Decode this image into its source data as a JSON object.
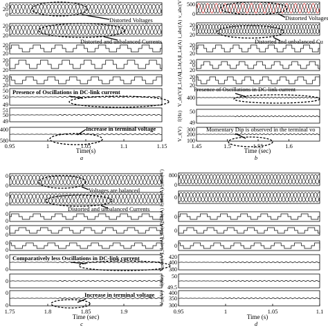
{
  "chart_data": [
    {
      "type": "line",
      "panel_label": "a",
      "x_range": [
        0.95,
        1.15
      ],
      "x_ticks": [
        "0.95",
        "1",
        "1.05",
        "1.1",
        "1.15"
      ],
      "x_title": "Time(s)",
      "rows": [
        {
          "kind": "three_phase",
          "ticks": [
            "0",
            "20",
            "0"
          ]
        },
        {
          "kind": "three_phase",
          "ticks": [
            "20",
            "0",
            "20"
          ]
        },
        {
          "kind": "square",
          "ticks": [
            "20",
            "0",
            "20"
          ]
        },
        {
          "kind": "square",
          "ticks": [
            "20",
            "0",
            "20"
          ]
        },
        {
          "kind": "square",
          "ticks": [
            "20",
            "0",
            "20"
          ]
        },
        {
          "kind": "flat",
          "ticks": [
            "50",
            "50",
            "49"
          ]
        },
        {
          "kind": "flat",
          "ticks": [
            "51",
            "50",
            "49"
          ]
        },
        {
          "kind": "flat",
          "ticks": [
            "400",
            "580"
          ]
        }
      ],
      "annotations": [
        "Distorted Voltages",
        "Distorted and unbalanced Currents",
        "Presence of Oscillations in DC-link current",
        "Increase in terminal voltage"
      ]
    },
    {
      "type": "line",
      "panel_label": "b",
      "x_range": [
        1.45,
        1.65
      ],
      "x_ticks": [
        "1.45",
        "1.5",
        "1.55",
        "1.6"
      ],
      "x_title": "Time (sec)",
      "rows": [
        {
          "kind": "three_phase",
          "ticks": [
            "500",
            "0"
          ],
          "label": "v_abc(V)"
        },
        {
          "kind": "three_phase",
          "ticks": [
            "20",
            "0",
            "20"
          ],
          "label": "i_abc(A)"
        },
        {
          "kind": "square",
          "ticks": [
            "20",
            "0",
            "20"
          ],
          "label": "I_La(A)"
        },
        {
          "kind": "square",
          "ticks": [
            "20",
            "0",
            "20"
          ],
          "label": "I_Lb(A)"
        },
        {
          "kind": "square",
          "ticks": [
            "20",
            "0",
            "20"
          ],
          "label": "I_Lc(A)"
        },
        {
          "kind": "flat",
          "ticks": [
            "400"
          ],
          "label": "V_dc(V)"
        },
        {
          "kind": "flat",
          "ticks": [
            "50",
            "49"
          ],
          "label": "f(Hz)"
        },
        {
          "kind": "flat",
          "ticks": [
            "300",
            "200",
            "100"
          ],
          "label": "V_t(V)"
        }
      ],
      "annotations": [
        "Distorted Voltages",
        "Distorted and unbalanced Cu",
        "Presence of Oscillations in DC-link current",
        "Momentary Dip is observed in the terminal vo"
      ]
    },
    {
      "type": "line",
      "panel_label": "c",
      "x_range": [
        1.75,
        1.95
      ],
      "x_ticks": [
        "1.75",
        "1.8",
        "1.85",
        "1.9"
      ],
      "x_title": "Time (sec)",
      "rows": [
        {
          "kind": "three_phase",
          "ticks": [
            "0",
            "0"
          ]
        },
        {
          "kind": "three_phase",
          "ticks": [
            "0",
            "0"
          ]
        },
        {
          "kind": "square",
          "ticks": [
            "0",
            "0"
          ]
        },
        {
          "kind": "square",
          "ticks": [
            "0",
            "0"
          ]
        },
        {
          "kind": "square",
          "ticks": [
            "0",
            "0"
          ]
        },
        {
          "kind": "flat",
          "ticks": [
            "0",
            "0"
          ]
        },
        {
          "kind": "flat",
          "ticks": [
            "0"
          ]
        },
        {
          "kind": "flat",
          "ticks": [
            "0",
            "0"
          ]
        }
      ],
      "annotations": [
        "Voltages are balanced",
        "Distorted and unbalanced Currents",
        "Comparatively less Oscillations in DC-link current",
        "Increase in terminal voltage"
      ]
    },
    {
      "type": "line",
      "panel_label": "d",
      "x_range": [
        0.95,
        1.1
      ],
      "x_ticks": [
        "0.95",
        "1",
        "1.05",
        "1.1"
      ],
      "x_title": "Time (s)",
      "rows": [
        {
          "kind": "three_phase",
          "ticks": [
            "800",
            "0"
          ],
          "label": "v_abc(V)"
        },
        {
          "kind": "three_phase",
          "ticks": [
            "0"
          ],
          "label": "i_abc(A)"
        },
        {
          "kind": "square",
          "ticks": [
            "0"
          ],
          "label": "I_La(A)"
        },
        {
          "kind": "square",
          "ticks": [
            "0"
          ],
          "label": "I_Lb(A)"
        },
        {
          "kind": "square",
          "ticks": [
            "0"
          ],
          "label": "I_Lc(A)"
        },
        {
          "kind": "flat",
          "ticks": [
            "420",
            "400",
            "380"
          ],
          "label": "V_dc(V)"
        },
        {
          "kind": "flat",
          "ticks": [
            "50",
            "49.5"
          ],
          "label": "f(Hz)"
        },
        {
          "kind": "flat",
          "ticks": [
            "400",
            "350",
            "300"
          ],
          "label": "V_t(V)"
        }
      ],
      "annotations": []
    }
  ]
}
